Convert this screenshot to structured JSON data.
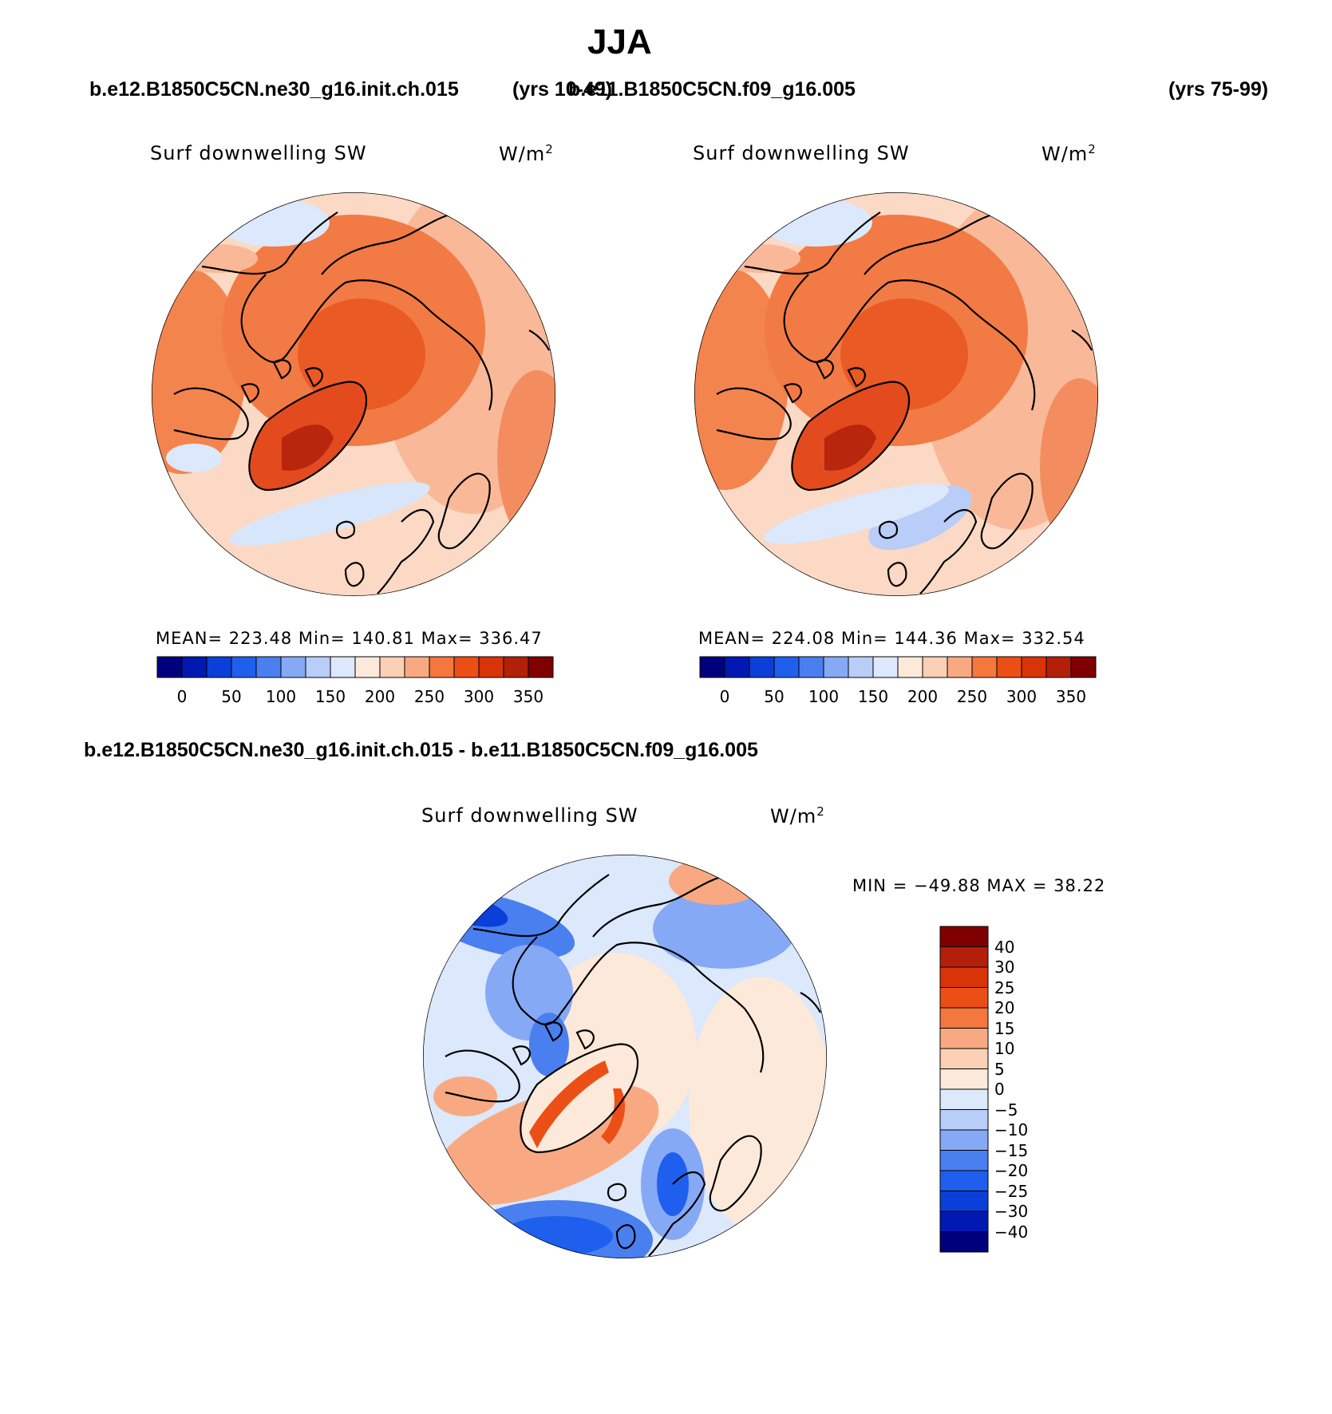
{
  "title": "JJA",
  "case1": {
    "name": "b.e12.B1850C5CN.ne30_g16.init.ch.015",
    "years": "(yrs 10-49)"
  },
  "case2": {
    "name": "b.e11.B1850C5CN.f09_g16.005",
    "years": "(yrs 75-99)"
  },
  "diff_header": "b.e12.B1850C5CN.ne30_g16.init.ch.015 - b.e11.B1850C5CN.f09_g16.005",
  "variable": "Surf downwelling SW",
  "units": "W/m",
  "units_exp": "2",
  "panel1": {
    "stats": "MEAN= 223.48   Min= 140.81   Max= 336.47"
  },
  "panel2": {
    "stats": "MEAN= 224.08   Min= 144.36   Max= 332.54"
  },
  "panel3": {
    "stats": "MIN = −49.88 MAX =   38.22"
  },
  "cbar_abs": {
    "colors": [
      "#00007f",
      "#0019b3",
      "#0a3fd9",
      "#1f5fee",
      "#4a7fef",
      "#86a9f5",
      "#b8cdf8",
      "#dce8fb",
      "#fde9da",
      "#fbd0b5",
      "#f9a982",
      "#f4773e",
      "#ec4f16",
      "#d93308",
      "#b3200a",
      "#800000"
    ],
    "labels": [
      "0",
      "50",
      "100",
      "150",
      "200",
      "250",
      "300",
      "350"
    ]
  },
  "cbar_diff": {
    "colors": [
      "#00007f",
      "#0019b3",
      "#0a3fd9",
      "#1f5fee",
      "#4a7fef",
      "#86a9f5",
      "#b8cdf8",
      "#dce8fb",
      "#fde9da",
      "#fbd0b5",
      "#f9a982",
      "#f4773e",
      "#ec4f16",
      "#d93308",
      "#b3200a",
      "#800000"
    ],
    "labels": [
      "40",
      "30",
      "25",
      "20",
      "15",
      "10",
      "5",
      "0",
      "−5",
      "−10",
      "−15",
      "−20",
      "−25",
      "−30",
      "−40"
    ]
  }
}
